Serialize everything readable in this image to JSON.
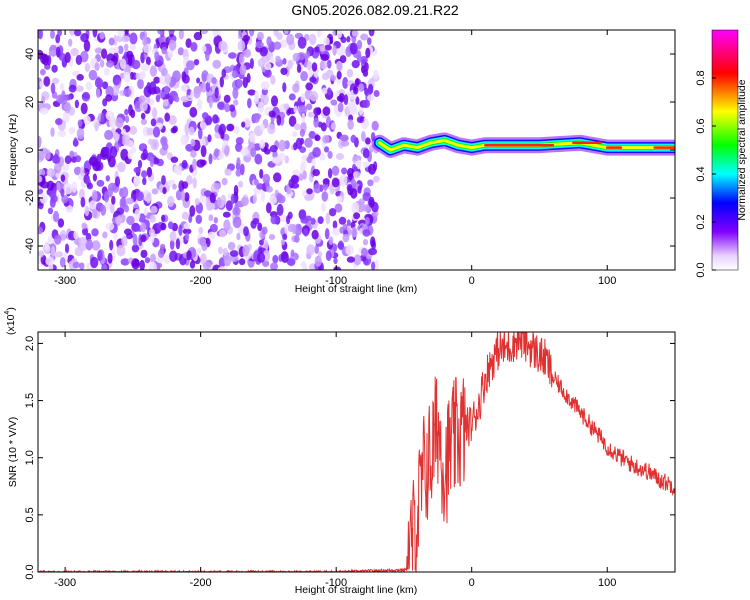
{
  "title": "GN05.2026.082.09.21.R22",
  "chart_data": [
    {
      "type": "heatmap",
      "xlabel": "Height of straight line (km)",
      "ylabel": "Frequency (Hz)",
      "xlim": [
        -320,
        150
      ],
      "ylim": [
        -50,
        50
      ],
      "xticks": [
        -300,
        -200,
        -100,
        0,
        100
      ],
      "yticks": [
        -40,
        -20,
        0,
        20,
        40
      ],
      "noise_region_x": [
        -320,
        -70
      ],
      "signal_band": [
        {
          "x": -68,
          "f": 3
        },
        {
          "x": -60,
          "f": 0
        },
        {
          "x": -50,
          "f": 2
        },
        {
          "x": -40,
          "f": 1
        },
        {
          "x": -30,
          "f": 3
        },
        {
          "x": -20,
          "f": 4
        },
        {
          "x": -10,
          "f": 2
        },
        {
          "x": 0,
          "f": 1
        },
        {
          "x": 10,
          "f": 2
        },
        {
          "x": 50,
          "f": 2
        },
        {
          "x": 80,
          "f": 3
        },
        {
          "x": 100,
          "f": 1
        },
        {
          "x": 120,
          "f": 1
        },
        {
          "x": 150,
          "f": 1
        }
      ],
      "colorbar": {
        "label": "Normalized spectral amplitude",
        "range": [
          0,
          1
        ],
        "ticks": [
          "0.0",
          "0.2",
          "0.4",
          "0.6",
          "0.8"
        ],
        "colors": [
          "#ffffff",
          "#8000ff",
          "#0000ff",
          "#00ffff",
          "#00ff00",
          "#ffff00",
          "#ff0000",
          "#ff00ff"
        ]
      }
    },
    {
      "type": "line",
      "xlabel": "Height of straight line (km)",
      "ylabel": "SNR (10 * V/V)",
      "y_multiplier": "(x10",
      "y_multiplier_exp": "4",
      "y_multiplier_close": ")",
      "xlim": [
        -320,
        150
      ],
      "ylim": [
        0,
        2.1
      ],
      "xticks": [
        -300,
        -200,
        -100,
        0,
        100
      ],
      "yticks": [
        "0.0",
        "0.5",
        "1.0",
        "1.5",
        "2.0"
      ],
      "line_color": "#e03030",
      "series": [
        {
          "x": [
            -320,
            -100,
            -48,
            -45,
            -40,
            -35,
            -30,
            -25,
            -20,
            -15,
            -10,
            -5,
            0,
            5,
            10,
            15,
            20,
            25,
            30,
            35,
            40,
            45,
            50,
            55,
            60,
            70,
            80,
            90,
            100,
            110,
            120,
            130,
            140,
            150
          ],
          "y": [
            0.0,
            0.0,
            0.02,
            0.2,
            0.5,
            0.9,
            1.0,
            1.3,
            0.9,
            1.1,
            1.2,
            1.25,
            1.3,
            1.45,
            1.7,
            1.85,
            1.95,
            1.95,
            2.0,
            2.05,
            2.0,
            1.95,
            1.9,
            1.85,
            1.7,
            1.55,
            1.4,
            1.25,
            1.1,
            1.0,
            0.93,
            0.88,
            0.8,
            0.75
          ]
        }
      ]
    }
  ]
}
